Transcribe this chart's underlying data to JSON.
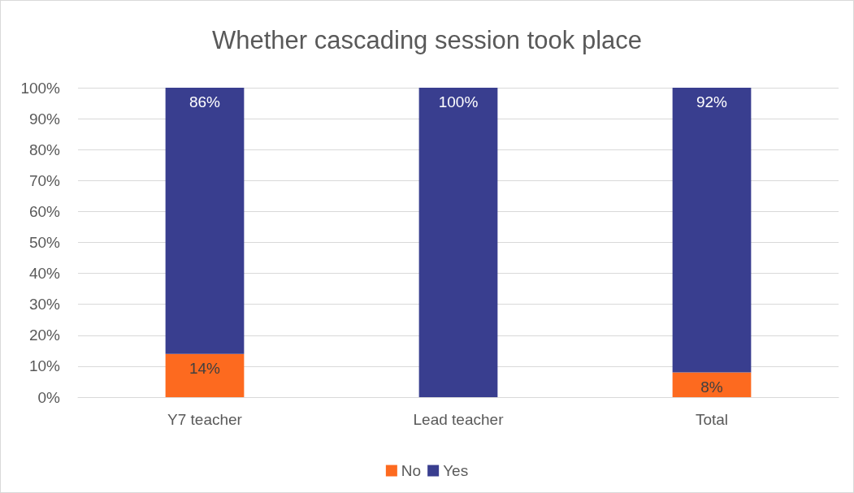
{
  "chart_data": {
    "type": "bar",
    "title": "Whether cascading session took place",
    "categories": [
      "Y7 teacher",
      "Lead teacher",
      "Total"
    ],
    "stacked": true,
    "series": [
      {
        "name": "No",
        "color": "#fd6a1f",
        "values": [
          14,
          0,
          8
        ],
        "value_labels": [
          "14%",
          null,
          "8%"
        ]
      },
      {
        "name": "Yes",
        "color": "#393e8f",
        "values": [
          86,
          100,
          92
        ],
        "value_labels": [
          "86%",
          "100%",
          "92%"
        ]
      }
    ],
    "ylim": [
      0,
      100
    ],
    "yticks": [
      {
        "value": 0,
        "label": "0%"
      },
      {
        "value": 10,
        "label": "10%"
      },
      {
        "value": 20,
        "label": "20%"
      },
      {
        "value": 30,
        "label": "30%"
      },
      {
        "value": 40,
        "label": "40%"
      },
      {
        "value": 50,
        "label": "50%"
      },
      {
        "value": 60,
        "label": "60%"
      },
      {
        "value": 70,
        "label": "70%"
      },
      {
        "value": 80,
        "label": "80%"
      },
      {
        "value": 90,
        "label": "90%"
      },
      {
        "value": 100,
        "label": "100%"
      }
    ],
    "grid": "y",
    "legend": "bottom"
  }
}
